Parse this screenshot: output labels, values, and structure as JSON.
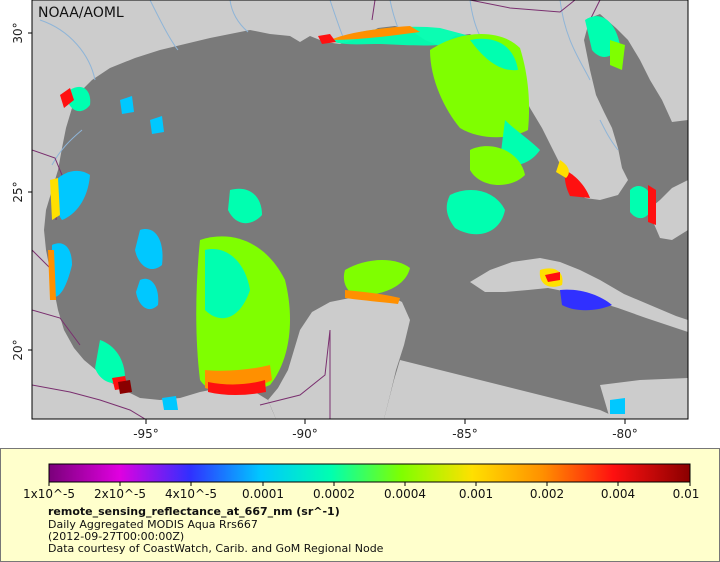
{
  "map": {
    "credit": "NOAA/AOML",
    "lat_ticks": [
      "30°",
      "25°",
      "20°"
    ],
    "lon_ticks": [
      "-95°",
      "-90°",
      "-85°",
      "-80°"
    ],
    "colors": {
      "ocean_nodata": "#7a7a7a",
      "land": "#cccccc",
      "rivers": "#8fb5d8",
      "borders": "#7a2f6f"
    }
  },
  "legend": {
    "colorbar_labels": [
      "1x10^-5",
      "2x10^-5",
      "4x10^-5",
      "0.0001",
      "0.0002",
      "0.0004",
      "0.001",
      "0.002",
      "0.004",
      "0.01"
    ],
    "colorbar_colors": [
      "#7a007a",
      "#e000e0",
      "#3030ff",
      "#00c8ff",
      "#00ffb0",
      "#7fff00",
      "#ffe000",
      "#ff9000",
      "#ff1010",
      "#8a0000"
    ],
    "variable": "remote_sensing_reflectance_at_667_nm (sr^-1)",
    "product": "Daily Aggregated MODIS Aqua Rrs667",
    "date": "(2012-09-27T00:00:00Z)",
    "source": "Data courtesy of CoastWatch, Carib. and GoM Regional Node"
  }
}
